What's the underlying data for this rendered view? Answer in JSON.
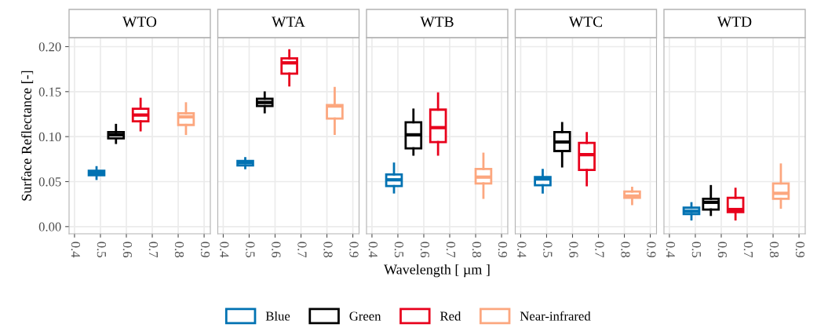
{
  "chart_data": [
    {
      "type": "box",
      "title": "WTO",
      "ylabel": "Surface Reflectance [-]",
      "xlim": [
        0.379,
        0.924
      ],
      "xticks": [
        0.4,
        0.5,
        0.6,
        0.7,
        0.8,
        0.9
      ],
      "ylim": [
        -0.008,
        0.21
      ],
      "yticks": [
        {
          "value": 0,
          "label": "0.00"
        },
        {
          "value": 0.05,
          "label": "0.05"
        },
        {
          "value": 0.1,
          "label": "0.10"
        },
        {
          "value": 0.15,
          "label": "0.15"
        },
        {
          "value": 0.2,
          "label": "0.20"
        }
      ],
      "grid": true,
      "series": [
        {
          "color": "#0072b2",
          "x": [
            0.485
          ],
          "boxes": [
            {
              "low": 0.053,
              "q1": 0.057,
              "median": 0.06,
              "q3": 0.062,
              "high": 0.066
            }
          ]
        },
        {
          "color": "#000000",
          "x": [
            0.56
          ],
          "boxes": [
            {
              "low": 0.093,
              "q1": 0.098,
              "median": 0.102,
              "q3": 0.105,
              "high": 0.113
            }
          ]
        },
        {
          "color": "#e8001c",
          "x": [
            0.655
          ],
          "boxes": [
            {
              "low": 0.107,
              "q1": 0.117,
              "median": 0.124,
              "q3": 0.131,
              "high": 0.142
            }
          ]
        },
        {
          "color": "#fca77f",
          "x": [
            0.83
          ],
          "boxes": [
            {
              "low": 0.103,
              "q1": 0.113,
              "median": 0.122,
              "q3": 0.126,
              "high": 0.137
            }
          ]
        }
      ]
    },
    {
      "type": "box",
      "title": "WTA",
      "tick_labels": "x",
      "xlim": [
        0.379,
        0.924
      ],
      "xticks": [
        0.4,
        0.5,
        0.6,
        0.7,
        0.8,
        0.9
      ],
      "ylim": [
        -0.008,
        0.21
      ],
      "yticks": [
        0,
        0.05,
        0.1,
        0.15,
        0.2
      ],
      "grid": true,
      "series": [
        {
          "color": "#0072b2",
          "x": [
            0.485
          ],
          "boxes": [
            {
              "low": 0.065,
              "q1": 0.068,
              "median": 0.071,
              "q3": 0.073,
              "high": 0.076
            }
          ]
        },
        {
          "color": "#000000",
          "x": [
            0.56
          ],
          "boxes": [
            {
              "low": 0.127,
              "q1": 0.134,
              "median": 0.138,
              "q3": 0.142,
              "high": 0.149
            }
          ]
        },
        {
          "color": "#e8001c",
          "x": [
            0.655
          ],
          "boxes": [
            {
              "low": 0.157,
              "q1": 0.17,
              "median": 0.182,
              "q3": 0.187,
              "high": 0.196
            }
          ]
        },
        {
          "color": "#fca77f",
          "x": [
            0.83
          ],
          "boxes": [
            {
              "low": 0.103,
              "q1": 0.12,
              "median": 0.134,
              "q3": 0.135,
              "high": 0.154
            }
          ]
        }
      ]
    },
    {
      "type": "box",
      "title": "WTB",
      "xlabel": "Wavelength [ µm ]",
      "tick_labels": "x",
      "legend": "bottom",
      "xlim": [
        0.379,
        0.924
      ],
      "xticks": [
        0.4,
        0.5,
        0.6,
        0.7,
        0.8,
        0.9
      ],
      "ylim": [
        -0.008,
        0.21
      ],
      "yticks": [
        0,
        0.05,
        0.1,
        0.15,
        0.2
      ],
      "grid": true,
      "series": [
        {
          "name": "Blue",
          "color": "#0072b2",
          "x": [
            0.485
          ],
          "boxes": [
            {
              "low": 0.038,
              "q1": 0.045,
              "median": 0.052,
              "q3": 0.058,
              "high": 0.07
            }
          ]
        },
        {
          "name": "Green",
          "color": "#000000",
          "x": [
            0.56
          ],
          "boxes": [
            {
              "low": 0.08,
              "q1": 0.087,
              "median": 0.102,
              "q3": 0.116,
              "high": 0.13
            }
          ]
        },
        {
          "name": "Red",
          "color": "#e8001c",
          "x": [
            0.655
          ],
          "boxes": [
            {
              "low": 0.08,
              "q1": 0.094,
              "median": 0.11,
              "q3": 0.13,
              "high": 0.148
            }
          ]
        },
        {
          "name": "Near-infrared",
          "color": "#fca77f",
          "x": [
            0.83
          ],
          "boxes": [
            {
              "low": 0.032,
              "q1": 0.048,
              "median": 0.055,
              "q3": 0.064,
              "high": 0.081
            }
          ]
        }
      ]
    },
    {
      "type": "box",
      "title": "WTC",
      "tick_labels": "x",
      "xlim": [
        0.379,
        0.924
      ],
      "xticks": [
        0.4,
        0.5,
        0.6,
        0.7,
        0.8,
        0.9
      ],
      "ylim": [
        -0.008,
        0.21
      ],
      "yticks": [
        0,
        0.05,
        0.1,
        0.15,
        0.2
      ],
      "grid": true,
      "series": [
        {
          "color": "#0072b2",
          "x": [
            0.485
          ],
          "boxes": [
            {
              "low": 0.038,
              "q1": 0.046,
              "median": 0.053,
              "q3": 0.055,
              "high": 0.063
            }
          ]
        },
        {
          "color": "#000000",
          "x": [
            0.56
          ],
          "boxes": [
            {
              "low": 0.067,
              "q1": 0.084,
              "median": 0.094,
              "q3": 0.105,
              "high": 0.115
            }
          ]
        },
        {
          "color": "#e8001c",
          "x": [
            0.655
          ],
          "boxes": [
            {
              "low": 0.046,
              "q1": 0.063,
              "median": 0.08,
              "q3": 0.093,
              "high": 0.104
            }
          ]
        },
        {
          "color": "#fca77f",
          "x": [
            0.83
          ],
          "boxes": [
            {
              "low": 0.025,
              "q1": 0.032,
              "median": 0.034,
              "q3": 0.039,
              "high": 0.043
            }
          ]
        }
      ]
    },
    {
      "type": "box",
      "title": "WTD",
      "tick_labels": "x",
      "xlim": [
        0.379,
        0.924
      ],
      "xticks": [
        0.4,
        0.5,
        0.6,
        0.7,
        0.8,
        0.9
      ],
      "ylim": [
        -0.008,
        0.21
      ],
      "yticks": [
        0,
        0.05,
        0.1,
        0.15,
        0.2
      ],
      "grid": true,
      "series": [
        {
          "color": "#0072b2",
          "x": [
            0.485
          ],
          "boxes": [
            {
              "low": 0.008,
              "q1": 0.014,
              "median": 0.017,
              "q3": 0.021,
              "high": 0.026
            }
          ]
        },
        {
          "color": "#000000",
          "x": [
            0.56
          ],
          "boxes": [
            {
              "low": 0.013,
              "q1": 0.019,
              "median": 0.027,
              "q3": 0.031,
              "high": 0.045
            }
          ]
        },
        {
          "color": "#e8001c",
          "x": [
            0.655
          ],
          "boxes": [
            {
              "low": 0.008,
              "q1": 0.016,
              "median": 0.019,
              "q3": 0.032,
              "high": 0.042
            }
          ]
        },
        {
          "color": "#fca77f",
          "x": [
            0.83
          ],
          "boxes": [
            {
              "low": 0.021,
              "q1": 0.031,
              "median": 0.037,
              "q3": 0.048,
              "high": 0.069
            }
          ]
        }
      ]
    }
  ]
}
